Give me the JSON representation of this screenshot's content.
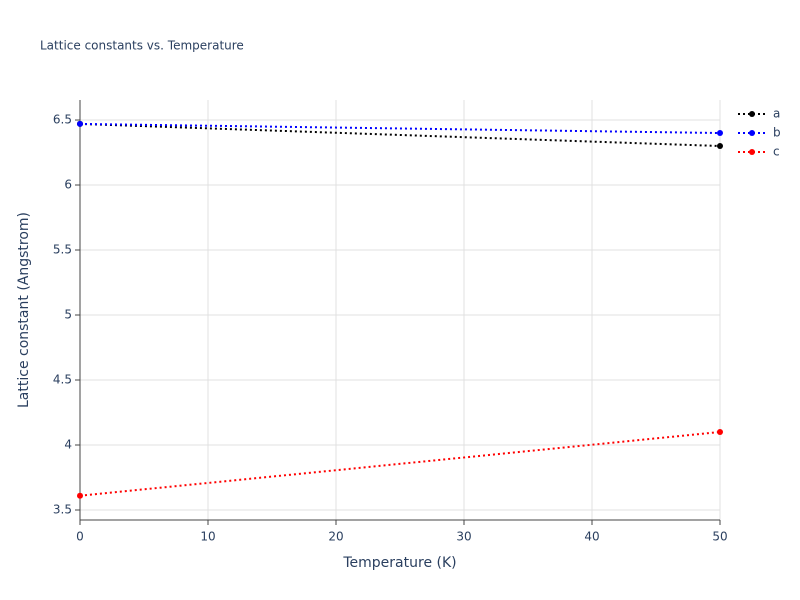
{
  "chart_data": {
    "type": "line",
    "title": "Lattice constants vs. Temperature",
    "x_label": "Temperature (K)",
    "y_label": "Lattice constant (Angstrom)",
    "x": [
      0,
      50
    ],
    "series": [
      {
        "name": "a",
        "color": "#000000",
        "values": [
          6.47,
          6.3
        ]
      },
      {
        "name": "b",
        "color": "#0000ff",
        "values": [
          6.47,
          6.4
        ]
      },
      {
        "name": "c",
        "color": "#ff0000",
        "values": [
          3.61,
          4.1
        ]
      }
    ],
    "xlim": [
      0,
      50
    ],
    "xticks": [
      0,
      10,
      20,
      30,
      40,
      50
    ],
    "ylim": [
      3.423,
      6.654
    ],
    "yticks": [
      3.5,
      4,
      4.5,
      5,
      5.5,
      6,
      6.5
    ],
    "grid": true,
    "legend": "top-right"
  }
}
